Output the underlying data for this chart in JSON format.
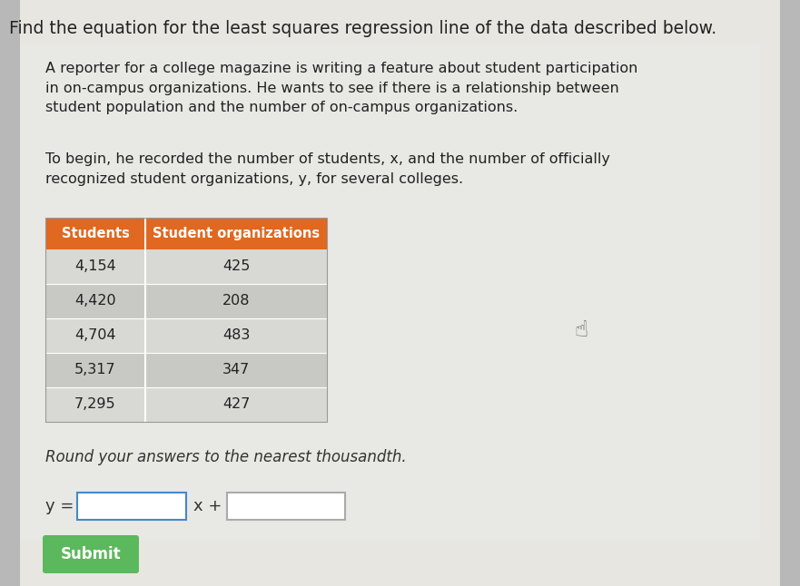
{
  "outer_bg": "#b8b8b8",
  "panel_bg": "#e8e6e0",
  "title_text": "Find the equation for the least squares regression line of the data described below.",
  "title_fontsize": 13.5,
  "title_color": "#222222",
  "body_text1": "A reporter for a college magazine is writing a feature about student participation\nin on-campus organizations. He wants to see if there is a relationship between\nstudent population and the number of on-campus organizations.",
  "body_text2": "To begin, he recorded the number of students, x, and the number of officially\nrecognized student organizations, y, for several colleges.",
  "body_fontsize": 11.5,
  "body_color": "#222222",
  "col1_header": "Students",
  "col2_header": "Student organizations",
  "header_bg": "#e06820",
  "header_color": "#ffffff",
  "header_fontsize": 10.5,
  "row_colors": [
    "#dcdcdc",
    "#cccccc"
  ],
  "students": [
    "4,154",
    "4,420",
    "4,704",
    "5,317",
    "7,295"
  ],
  "orgs": [
    "425",
    "208",
    "483",
    "347",
    "427"
  ],
  "cell_fontsize": 11.5,
  "round_text": "Round your answers to the nearest thousandth.",
  "round_fontsize": 12,
  "eq_label": "y =",
  "eq_x_label": "x +",
  "eq_fontsize": 13,
  "box1_border": "#4488cc",
  "box2_border": "#aaaaaa",
  "submit_text": "Submit",
  "submit_bg": "#5cb85c",
  "submit_color": "#ffffff",
  "submit_fontsize": 12
}
